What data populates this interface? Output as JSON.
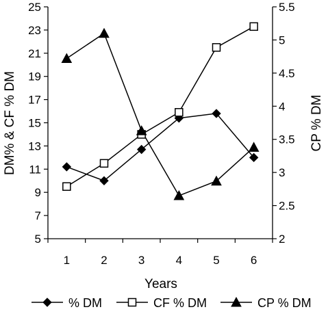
{
  "chart_data": {
    "type": "line",
    "title": "",
    "xlabel": "Years",
    "ylabel_left": "DM% & CF % DM",
    "ylabel_right": "CP % DM",
    "categories": [
      "1",
      "2",
      "3",
      "4",
      "5",
      "6"
    ],
    "y_left": {
      "range": [
        5,
        25
      ],
      "ticks": [
        "5",
        "7",
        "9",
        "11",
        "13",
        "15",
        "17",
        "19",
        "21",
        "23",
        "25"
      ]
    },
    "y_right": {
      "range": [
        2,
        5.5
      ],
      "ticks": [
        "2",
        "2.5",
        "3",
        "3.5",
        "4",
        "4.5",
        "5",
        "5.5"
      ]
    },
    "grid": false,
    "legend_position": "bottom",
    "series": [
      {
        "name": "% DM",
        "axis": "left",
        "marker": "diamond",
        "values": [
          11.2,
          10.0,
          12.7,
          15.4,
          15.8,
          12.0
        ]
      },
      {
        "name": "CF % DM",
        "axis": "left",
        "marker": "square-open",
        "values": [
          9.5,
          11.5,
          14.0,
          15.9,
          21.5,
          23.3
        ]
      },
      {
        "name": "CP % DM",
        "axis": "right",
        "marker": "triangle",
        "values": [
          4.72,
          5.1,
          3.63,
          2.65,
          2.87,
          3.38
        ]
      }
    ]
  }
}
